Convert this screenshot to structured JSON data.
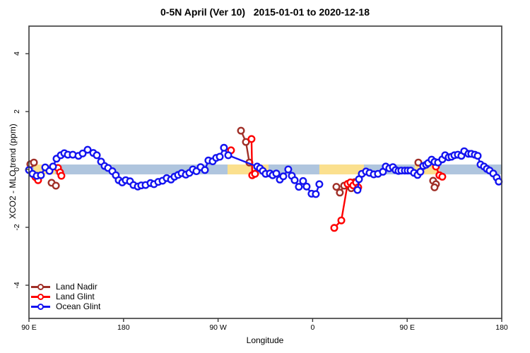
{
  "window_title": "0-5N April (Ver 10)   2015-01-01 to 2020-12-18",
  "chart_data": {
    "type": "scatter",
    "title": "0-5N April (Ver 10)   2015-01-01 to 2020-12-18",
    "xlabel": "Longitude",
    "ylabel": "XCO2 - MLO trend (ppm)",
    "x_axis": {
      "unit": "degrees along wrapped longitude axis (0 = 90E at left edge, eastward)",
      "range": [
        0,
        450
      ],
      "ticks": [
        {
          "pos": 0,
          "label": "90 E"
        },
        {
          "pos": 90,
          "label": "180"
        },
        {
          "pos": 180,
          "label": "90 W"
        },
        {
          "pos": 270,
          "label": "0"
        },
        {
          "pos": 360,
          "label": "90 E"
        },
        {
          "pos": 450,
          "label": "180"
        }
      ]
    },
    "y_axis": {
      "range": [
        -5.1,
        4.95
      ],
      "ticks": [
        {
          "pos": 4,
          "label": "4"
        },
        {
          "pos": 2,
          "label": "2"
        },
        {
          "pos": 0,
          "label": "0"
        },
        {
          "pos": -2,
          "label": "-2"
        },
        {
          "pos": -4,
          "label": "-4"
        }
      ]
    },
    "reference_band": {
      "y_from": -0.17,
      "y_to": 0.17,
      "ocean_color": "#AFC5DE",
      "land_color": "#FBE08E",
      "land_segments_deg": [
        [
          4.7,
          24.9
        ],
        [
          189.0,
          228.0
        ],
        [
          276.4,
          318.8
        ],
        [
          367.2,
          390.7
        ]
      ]
    },
    "legend": {
      "position": "bottom-left"
    },
    "series": [
      {
        "name": "Land Nadir",
        "color": "#A03028",
        "runs": [
          [
            [
              1.3,
              0.18
            ],
            [
              4.7,
              0.24
            ]
          ],
          [
            [
              21.5,
              -0.46
            ],
            [
              25.6,
              -0.56
            ]
          ],
          [
            [
              201.8,
              1.34
            ],
            [
              206.5,
              0.95
            ],
            [
              209.8,
              0.24
            ]
          ],
          [
            [
              292.6,
              -0.6
            ],
            [
              295.9,
              -0.8
            ],
            [
              300.0,
              -0.56
            ],
            [
              304.0,
              -0.5
            ],
            [
              306.7,
              -0.65
            ],
            [
              310.0,
              -0.44
            ]
          ],
          [
            [
              370.6,
              0.24
            ]
          ],
          [
            [
              384.7,
              -0.39
            ],
            [
              387.4,
              -0.51
            ],
            [
              386.0,
              -0.62
            ]
          ]
        ]
      },
      {
        "name": "Land Glint",
        "color": "#FE0000",
        "runs": [
          [
            [
              6.1,
              -0.26
            ],
            [
              8.7,
              -0.37
            ]
          ],
          [
            [
              27.6,
              0.05
            ],
            [
              29.6,
              -0.1
            ],
            [
              30.9,
              -0.22
            ]
          ],
          [
            [
              192.3,
              0.66
            ]
          ],
          [
            [
              211.8,
              1.05
            ],
            [
              212.5,
              -0.2
            ],
            [
              215.2,
              -0.15
            ]
          ],
          [
            [
              290.6,
              -2.02
            ],
            [
              297.3,
              -1.76
            ],
            [
              303.3,
              -0.5
            ],
            [
              306.0,
              -0.45
            ],
            [
              308.7,
              -0.55
            ],
            [
              311.4,
              -0.45
            ],
            [
              313.4,
              -0.62
            ]
          ],
          [
            [
              387.4,
              0.1
            ],
            [
              390.7,
              -0.2
            ],
            [
              393.4,
              -0.25
            ]
          ]
        ]
      },
      {
        "name": "Ocean Glint",
        "color": "#1414F0",
        "runs": [
          [
            [
              0.0,
              -0.02
            ],
            [
              3.4,
              -0.15
            ],
            [
              7.4,
              -0.22
            ],
            [
              11.4,
              -0.2
            ],
            [
              15.5,
              0.07
            ],
            [
              19.5,
              -0.05
            ],
            [
              22.9,
              0.1
            ],
            [
              26.2,
              0.37
            ],
            [
              30.3,
              0.49
            ],
            [
              33.6,
              0.56
            ],
            [
              37.0,
              0.51
            ],
            [
              41.7,
              0.51
            ],
            [
              47.1,
              0.47
            ],
            [
              51.1,
              0.55
            ],
            [
              55.8,
              0.68
            ],
            [
              61.2,
              0.57
            ],
            [
              64.6,
              0.49
            ],
            [
              68.6,
              0.27
            ],
            [
              72.0,
              0.12
            ],
            [
              75.3,
              0.05
            ],
            [
              79.4,
              -0.06
            ],
            [
              82.7,
              -0.2
            ],
            [
              85.4,
              -0.37
            ],
            [
              88.8,
              -0.45
            ],
            [
              92.1,
              -0.37
            ],
            [
              96.2,
              -0.41
            ],
            [
              99.5,
              -0.54
            ],
            [
              103.6,
              -0.59
            ],
            [
              106.9,
              -0.55
            ],
            [
              111.0,
              -0.54
            ],
            [
              115.7,
              -0.47
            ],
            [
              119.0,
              -0.51
            ],
            [
              123.1,
              -0.43
            ],
            [
              127.1,
              -0.39
            ],
            [
              131.1,
              -0.3
            ],
            [
              135.2,
              -0.35
            ],
            [
              138.5,
              -0.25
            ],
            [
              141.9,
              -0.19
            ],
            [
              145.3,
              -0.13
            ],
            [
              149.3,
              -0.18
            ],
            [
              152.7,
              -0.12
            ],
            [
              156.0,
              0.0
            ],
            [
              159.4,
              -0.06
            ],
            [
              163.4,
              0.08
            ],
            [
              167.5,
              -0.02
            ],
            [
              170.8,
              0.31
            ],
            [
              174.9,
              0.28
            ],
            [
              178.2,
              0.4
            ],
            [
              181.6,
              0.44
            ],
            [
              185.6,
              0.75
            ],
            [
              189.7,
              0.49
            ],
            [
              217.2,
              0.1
            ],
            [
              219.9,
              0.04
            ],
            [
              222.6,
              -0.05
            ],
            [
              225.3,
              -0.15
            ],
            [
              229.3,
              -0.14
            ],
            [
              232.0,
              -0.2
            ],
            [
              235.4,
              -0.14
            ],
            [
              238.8,
              -0.35
            ],
            [
              242.1,
              -0.24
            ],
            [
              246.8,
              0.0
            ],
            [
              250.2,
              -0.22
            ],
            [
              252.9,
              -0.37
            ],
            [
              256.9,
              -0.6
            ],
            [
              260.9,
              -0.4
            ],
            [
              264.3,
              -0.59
            ],
            [
              269.0,
              -0.84
            ],
            [
              273.0,
              -0.85
            ],
            [
              276.4,
              -0.51
            ]
          ],
          [
            [
              312.7,
              -0.71
            ],
            [
              314.1,
              -0.34
            ],
            [
              316.8,
              -0.15
            ],
            [
              320.8,
              -0.07
            ],
            [
              324.2,
              -0.12
            ],
            [
              328.2,
              -0.17
            ],
            [
              332.2,
              -0.15
            ],
            [
              336.9,
              -0.08
            ],
            [
              339.6,
              0.1
            ],
            [
              343.0,
              0.04
            ],
            [
              346.4,
              0.08
            ],
            [
              349.0,
              -0.02
            ],
            [
              351.7,
              -0.05
            ],
            [
              354.4,
              -0.04
            ],
            [
              357.8,
              -0.04
            ],
            [
              360.5,
              -0.04
            ],
            [
              363.2,
              -0.04
            ],
            [
              366.5,
              -0.12
            ],
            [
              369.9,
              -0.19
            ],
            [
              372.6,
              -0.08
            ],
            [
              375.3,
              0.12
            ],
            [
              378.0,
              0.16
            ],
            [
              380.0,
              0.22
            ],
            [
              383.3,
              0.34
            ],
            [
              386.0,
              0.26
            ],
            [
              389.4,
              0.24
            ],
            [
              393.4,
              0.35
            ],
            [
              396.1,
              0.49
            ],
            [
              399.5,
              0.42
            ],
            [
              402.2,
              0.44
            ],
            [
              404.9,
              0.49
            ],
            [
              408.2,
              0.51
            ],
            [
              411.6,
              0.47
            ],
            [
              414.3,
              0.63
            ],
            [
              418.3,
              0.54
            ],
            [
              421.0,
              0.54
            ],
            [
              424.4,
              0.51
            ],
            [
              427.1,
              0.47
            ],
            [
              429.8,
              0.17
            ],
            [
              433.1,
              0.1
            ],
            [
              435.8,
              0.02
            ],
            [
              438.5,
              -0.04
            ],
            [
              441.9,
              -0.14
            ],
            [
              445.2,
              -0.28
            ],
            [
              447.2,
              -0.42
            ]
          ]
        ]
      }
    ]
  }
}
